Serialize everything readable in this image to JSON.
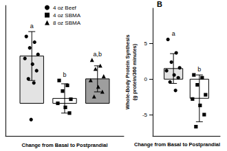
{
  "chart_data": [
    {
      "type": "bar",
      "xlabel": "Change from Basal to Postprandial",
      "categories": [
        null
      ],
      "ylim": [
        -4,
        12
      ],
      "tick_labels": false,
      "grid": false,
      "legend": "upper left",
      "series": [
        {
          "name": "4 oz Beef",
          "color": "#e3e3e3",
          "marker": "circle",
          "values": [
            5.8
          ],
          "errors": [
            3.0
          ],
          "points": [
            [
              8.2,
              7.5,
              6.8,
              6.0,
              5.5,
              4.8,
              4.0,
              3.0,
              2.5,
              -2.0
            ]
          ],
          "letters": [
            "a"
          ]
        },
        {
          "name": "4 oz SBMA",
          "color": "#ffffff",
          "marker": "square",
          "values": [
            0.6
          ],
          "errors": [
            1.8
          ],
          "points": [
            [
              2.8,
              2.2,
              1.5,
              0.5,
              0.0,
              -0.5,
              -1.2
            ]
          ],
          "letters": [
            "b"
          ]
        },
        {
          "name": "8 oz SBMA",
          "color": "#9e9e9e",
          "marker": "triangle",
          "values": [
            3.0
          ],
          "errors": [
            1.6
          ],
          "points": [
            [
              5.3,
              4.6,
              4.2,
              3.3,
              2.8,
              2.0,
              1.4,
              0.8
            ]
          ],
          "letters": [
            "a,b"
          ]
        }
      ]
    },
    {
      "type": "bar",
      "panel": "B",
      "ylabel": "Whole-Body Protein Synthesis\n(g protein/360 minutes)",
      "xlabel": "Change from Basal to Postprandial",
      "categories": [
        null
      ],
      "ylim": [
        -8,
        10
      ],
      "yticks": [
        -5,
        0,
        5
      ],
      "tick_labels": "y",
      "grid": false,
      "series": [
        {
          "name": "4 oz Beef",
          "color": "#e3e3e3",
          "marker": "circle",
          "values": [
            1.5
          ],
          "errors": [
            2.1
          ],
          "points": [
            [
              5.6,
              3.7,
              2.4,
              1.6,
              1.2,
              0.6,
              0.2,
              -0.4,
              -1.6
            ]
          ],
          "letters": [
            "a"
          ]
        },
        {
          "name": "4 oz SBMA",
          "color": "#ffffff",
          "marker": "square",
          "values": [
            -2.7
          ],
          "errors": [
            3.3
          ],
          "points": [
            [
              0.6,
              0.2,
              -0.8,
              -2.2,
              -2.8,
              -3.7,
              -5.0,
              -6.7
            ]
          ],
          "letters": [
            "b"
          ]
        }
      ]
    }
  ]
}
